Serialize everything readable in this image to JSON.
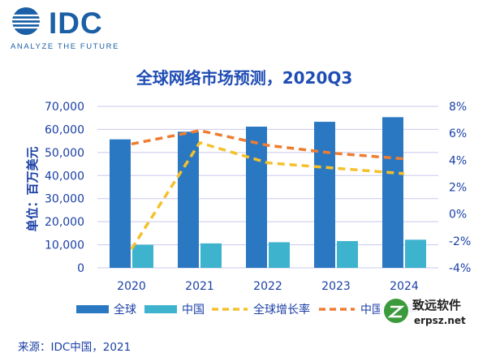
{
  "logo": {
    "name": "IDC",
    "tagline": "ANALYZE THE FUTURE",
    "color": "#1b5fa6"
  },
  "source": "来源：IDC中国，2021",
  "watermark": {
    "name": "致远软件",
    "url": "erpsz.net"
  },
  "colors": {
    "global_bar": "#2b78c2",
    "china_bar": "#3eb3ce",
    "global_growth": "#f5c02a",
    "china_growth": "#ef7d31",
    "title": "#1f4db5",
    "axis_text": "#1a3fa6",
    "grid": "#c8c8ee"
  },
  "chart_data": {
    "type": "bar",
    "title": "全球网络市场预测，2020Q3",
    "ylabel": "单位：百万美元",
    "categories": [
      "2020",
      "2021",
      "2022",
      "2023",
      "2024"
    ],
    "ylim": [
      0,
      70000
    ],
    "yticks": [
      "0",
      "10,000",
      "20,000",
      "30,000",
      "40,000",
      "50,000",
      "60,000",
      "70,000"
    ],
    "y2lim": [
      -4,
      8
    ],
    "y2ticks": [
      "-4%",
      "-2%",
      "0%",
      "2%",
      "4%",
      "6%",
      "8%"
    ],
    "series": [
      {
        "name": "全球",
        "kind": "bar",
        "axis": "left",
        "values": [
          55700,
          59000,
          61200,
          63300,
          65300
        ]
      },
      {
        "name": "中国",
        "kind": "bar",
        "axis": "left",
        "values": [
          10000,
          10600,
          11100,
          11600,
          12200
        ]
      },
      {
        "name": "全球增长率",
        "kind": "line",
        "axis": "right",
        "style": "dashed",
        "values": [
          -2.6,
          5.3,
          3.8,
          3.4,
          3.0
        ]
      },
      {
        "name": "中国增长率",
        "kind": "line",
        "axis": "right",
        "style": "dashed",
        "values": [
          5.2,
          6.2,
          5.1,
          4.5,
          4.1
        ]
      }
    ],
    "legend_position": "bottom",
    "grid": true
  }
}
